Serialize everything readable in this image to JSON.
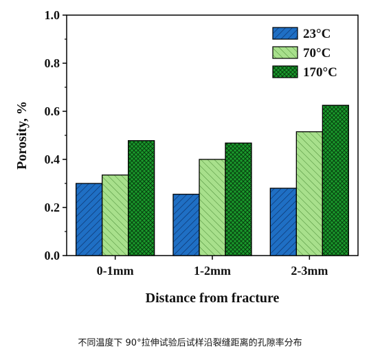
{
  "caption": "不同温度下 90°拉伸试验后试样沿裂缝距离的孔隙率分布",
  "chart_data": {
    "type": "bar",
    "categories": [
      "0-1mm",
      "1-2mm",
      "2-3mm"
    ],
    "series": [
      {
        "name": "23°C",
        "values": [
          0.3,
          0.255,
          0.28
        ],
        "color": "#1f6fc4",
        "pattern": "diagonal-hatch"
      },
      {
        "name": "70°C",
        "values": [
          0.335,
          0.4,
          0.515
        ],
        "color": "#a8e08c",
        "pattern": "back-diagonal-hatch"
      },
      {
        "name": "170°C",
        "values": [
          0.478,
          0.468,
          0.625
        ],
        "color": "#1a9a2c",
        "pattern": "cross-hatch"
      }
    ],
    "title": "",
    "xlabel": "Distance from fracture",
    "ylabel": "Porosity, %",
    "ylim": [
      0,
      1.0
    ],
    "yticks": [
      "0.0",
      "0.2",
      "0.4",
      "0.6",
      "0.8",
      "1.0"
    ],
    "grid": false,
    "legend_position": "top-right"
  }
}
